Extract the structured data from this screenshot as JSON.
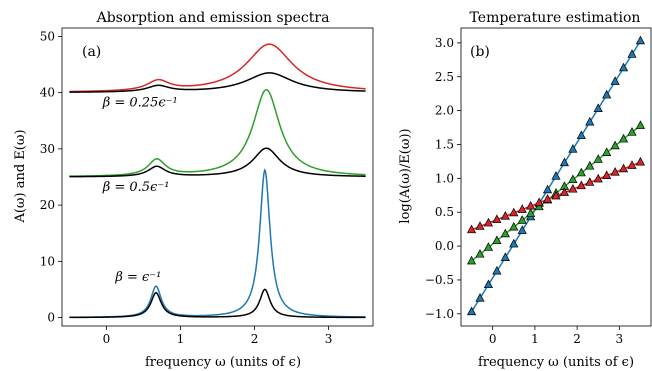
{
  "chart_data": [
    {
      "type": "line",
      "panel_label": "(a)",
      "title": "Absorption and emission spectra",
      "xlabel": "frequency ω (units of ϵ)",
      "ylabel": "A(ω) and E(ω)",
      "xlim": [
        -0.6,
        3.6
      ],
      "ylim": [
        -1.5,
        51.5
      ],
      "xticks": [
        0,
        1,
        2,
        3
      ],
      "yticks": [
        0,
        10,
        20,
        30,
        40,
        50
      ],
      "grid": false,
      "legend": "none",
      "annotations": [
        {
          "text": "β = 0.25ϵ⁻¹",
          "x": -0.05,
          "y": 37.5
        },
        {
          "text": "β = 0.5ϵ⁻¹",
          "x": -0.05,
          "y": 22.5
        },
        {
          "text": "β = ϵ⁻¹",
          "x": 0.12,
          "y": 6.5
        }
      ],
      "series": [
        {
          "color": "#d62728",
          "offset": 40,
          "peaks": [
            {
              "center": 0.7,
              "height": 1.8,
              "width": 0.18
            },
            {
              "center": 2.2,
              "height": 8.6,
              "width": 0.38
            }
          ]
        },
        {
          "color": "#000000",
          "offset": 40,
          "peaks": [
            {
              "center": 0.7,
              "height": 1.1,
              "width": 0.18
            },
            {
              "center": 2.2,
              "height": 3.5,
              "width": 0.38
            }
          ]
        },
        {
          "color": "#2ca02c",
          "offset": 25,
          "peaks": [
            {
              "center": 0.68,
              "height": 2.9,
              "width": 0.14
            },
            {
              "center": 2.16,
              "height": 15.5,
              "width": 0.22
            }
          ]
        },
        {
          "color": "#000000",
          "offset": 25,
          "peaks": [
            {
              "center": 0.68,
              "height": 1.8,
              "width": 0.14
            },
            {
              "center": 2.16,
              "height": 5.1,
              "width": 0.22
            }
          ]
        },
        {
          "color": "#1f77b4",
          "offset": 0,
          "peaks": [
            {
              "center": 0.67,
              "height": 5.5,
              "width": 0.085
            },
            {
              "center": 2.14,
              "height": 26.2,
              "width": 0.085
            }
          ]
        },
        {
          "color": "#000000",
          "offset": 0,
          "peaks": [
            {
              "center": 0.67,
              "height": 4.4,
              "width": 0.085
            },
            {
              "center": 2.14,
              "height": 5.0,
              "width": 0.085
            }
          ]
        }
      ]
    },
    {
      "type": "scatter",
      "panel_label": "(b)",
      "title": "Temperature estimation",
      "xlabel": "frequency ω (units of ϵ)",
      "ylabel": "log(A(ω)/E(ω))",
      "xlim": [
        -0.75,
        3.75
      ],
      "ylim": [
        -1.18,
        3.22
      ],
      "xticks": [
        0,
        1,
        2,
        3
      ],
      "yticks": [
        -1.0,
        -0.5,
        0.0,
        0.5,
        1.0,
        1.5,
        2.0,
        2.5,
        3.0
      ],
      "grid": false,
      "legend": "none",
      "x": [
        -0.5,
        -0.3,
        -0.1,
        0.1,
        0.3,
        0.5,
        0.7,
        0.9,
        1.1,
        1.3,
        1.5,
        1.7,
        1.9,
        2.1,
        2.3,
        2.5,
        2.7,
        2.9,
        3.1,
        3.3,
        3.5
      ],
      "series": [
        {
          "color": "#1f77b4",
          "y": [
            -0.97,
            -0.77,
            -0.57,
            -0.37,
            -0.17,
            0.03,
            0.23,
            0.43,
            0.63,
            0.83,
            1.03,
            1.23,
            1.43,
            1.63,
            1.83,
            2.03,
            2.23,
            2.43,
            2.63,
            2.83,
            3.03
          ]
        },
        {
          "color": "#2ca02c",
          "y": [
            -0.22,
            -0.12,
            -0.02,
            0.08,
            0.18,
            0.28,
            0.38,
            0.48,
            0.58,
            0.68,
            0.78,
            0.88,
            0.98,
            1.08,
            1.18,
            1.28,
            1.38,
            1.48,
            1.58,
            1.68,
            1.78
          ]
        },
        {
          "color": "#d62728",
          "y": [
            0.24,
            0.29,
            0.34,
            0.39,
            0.44,
            0.49,
            0.54,
            0.59,
            0.64,
            0.69,
            0.74,
            0.79,
            0.84,
            0.89,
            0.94,
            0.99,
            1.04,
            1.09,
            1.14,
            1.19,
            1.24
          ]
        }
      ]
    }
  ]
}
